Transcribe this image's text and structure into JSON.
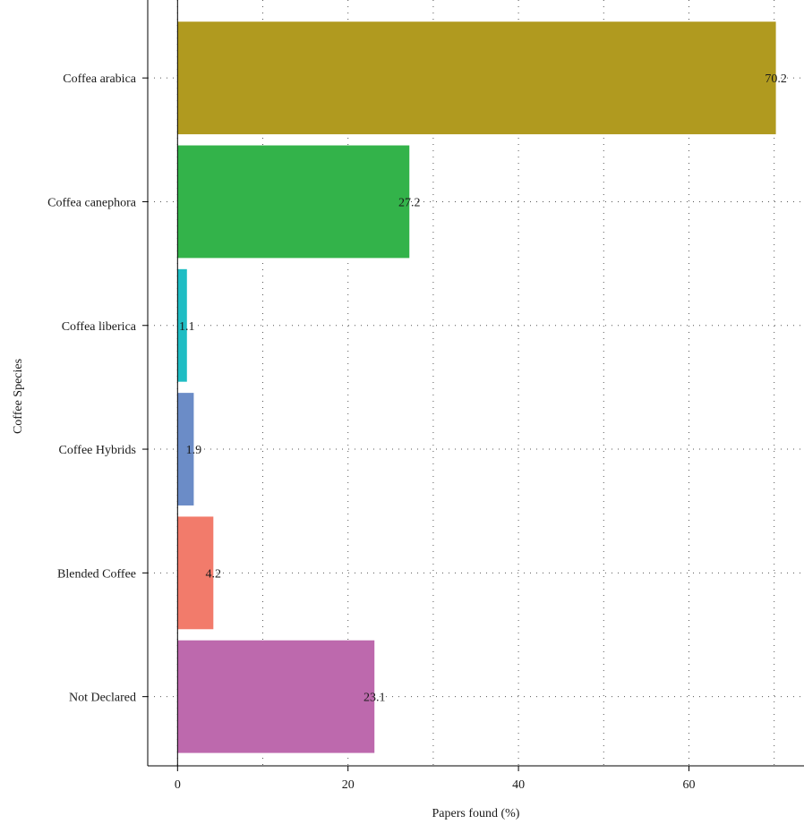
{
  "chart_data": {
    "type": "bar",
    "orientation": "horizontal",
    "categories": [
      "Coffea arabica",
      "Coffea canephora",
      "Coffea liberica",
      "Coffee Hybrids",
      "Blended Coffee",
      "Not Declared"
    ],
    "values": [
      70.2,
      27.2,
      1.1,
      1.9,
      4.2,
      23.1
    ],
    "data_labels": [
      "70.2",
      "27.2",
      "1.1",
      "1.9",
      "4.2",
      "23.1"
    ],
    "colors": [
      "#b09a1f",
      "#33b34a",
      "#1fbdc4",
      "#6b8cc7",
      "#f27b6b",
      "#bd69ad"
    ],
    "title": "",
    "xlabel": "Papers found (%)",
    "ylabel": "Coffee Species",
    "xlim": [
      -3.5,
      73.5
    ],
    "xticks": [
      0,
      20,
      40,
      60
    ],
    "xtick_labels": [
      "0",
      "20",
      "40",
      "60"
    ],
    "grid": true,
    "legend": "none"
  }
}
